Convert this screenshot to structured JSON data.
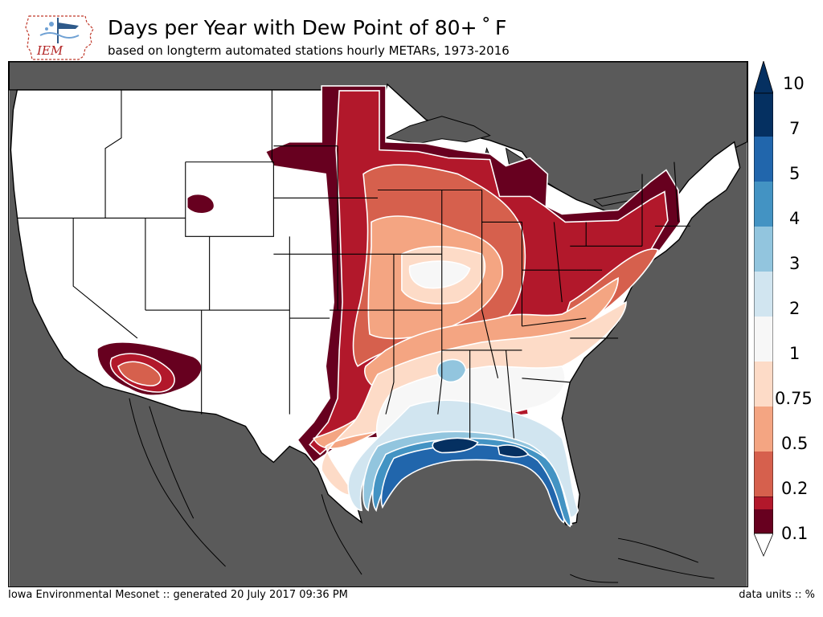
{
  "header": {
    "logo_text": "IEM",
    "title": "Days per Year with Dew Point of 80+ ˚ F",
    "subtitle": "based on longterm automated stations hourly METARs, 1973-2016"
  },
  "colorbar": {
    "levels": [
      "0.1",
      "0.2",
      "0.5",
      "0.75",
      "1",
      "2",
      "3",
      "4",
      "5",
      "7",
      "10"
    ],
    "colors": [
      "#67001f",
      "#b2182b",
      "#d6604d",
      "#f4a582",
      "#fddbc7",
      "#f7f7f7",
      "#d1e5f0",
      "#92c5de",
      "#4393c3",
      "#2166ac",
      "#053061"
    ]
  },
  "map": {
    "land_color": "#ffffff",
    "ocean_color": "#5a5a5a",
    "border_color": "#000000",
    "contour_line_color": "#ffffff"
  },
  "footer": {
    "credit": "Iowa Environmental Mesonet :: generated 20 July 2017 09:36 PM",
    "units": "data units :: %"
  }
}
